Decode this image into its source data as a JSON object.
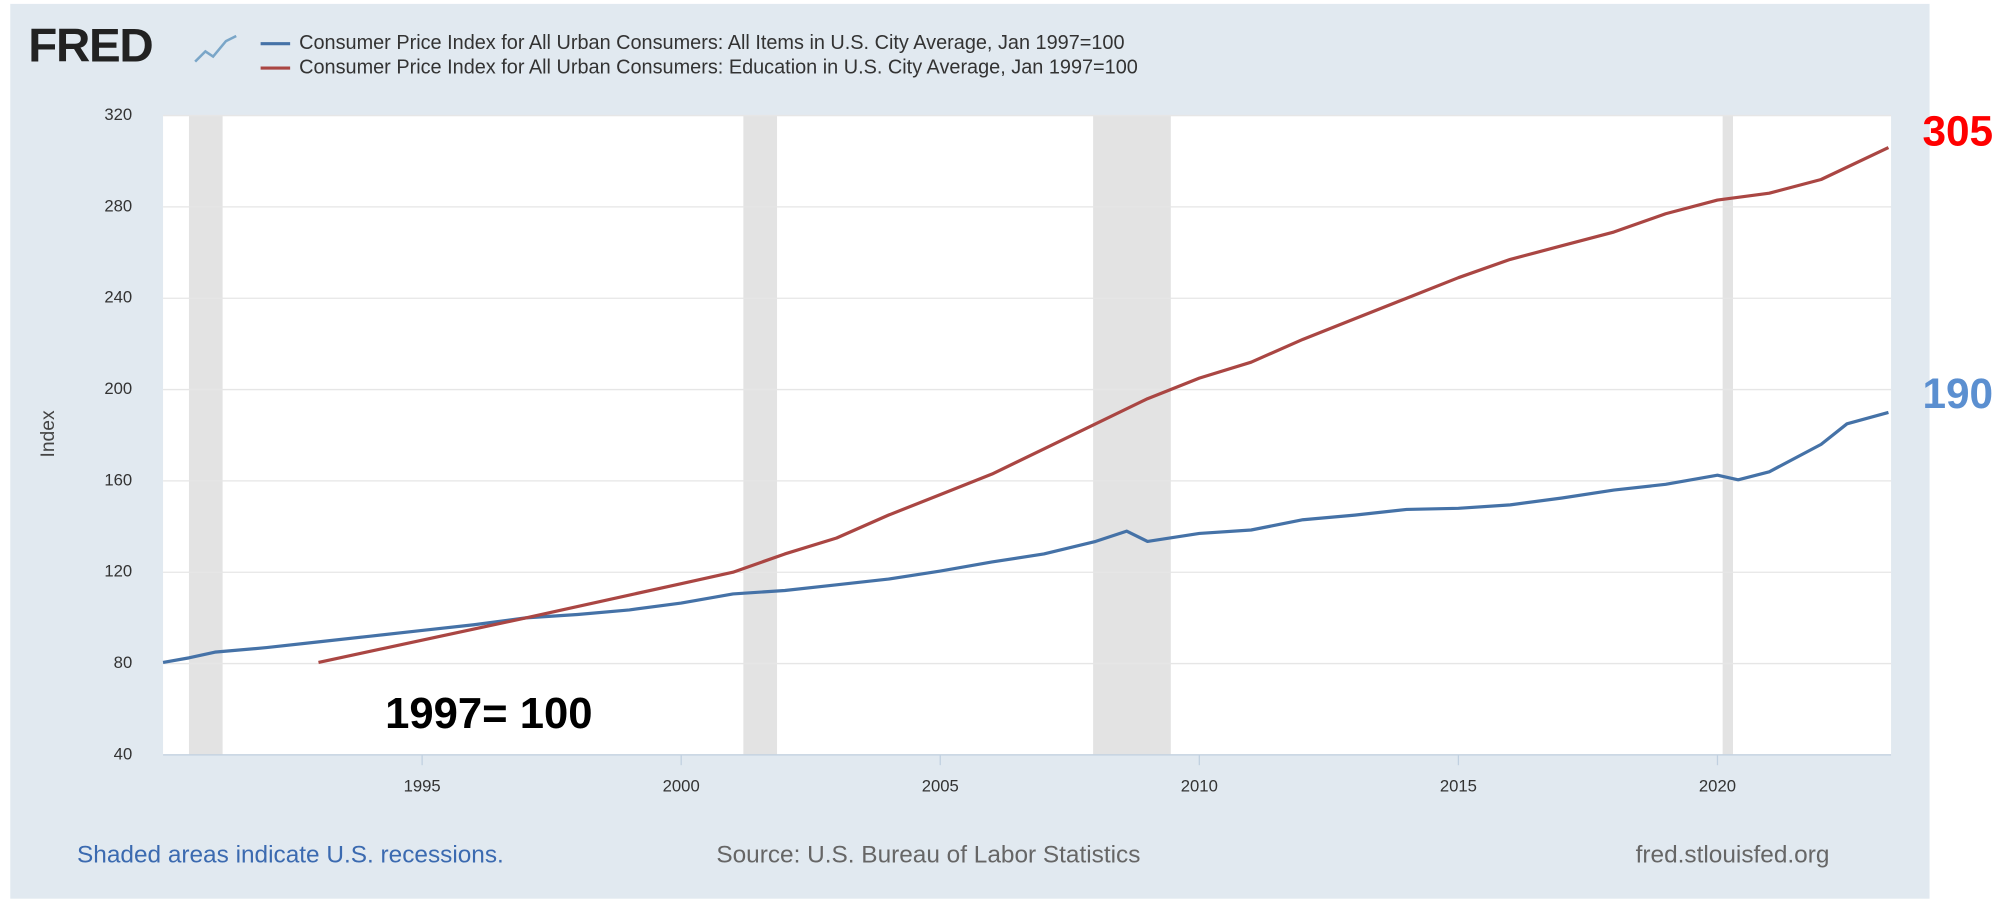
{
  "chart_data": {
    "type": "line",
    "logo": "FRED",
    "y_label": "Index",
    "annotation": "1997= 100",
    "xlim": [
      1990.0,
      2023.35
    ],
    "xticks": [
      1995,
      2000,
      2005,
      2010,
      2015,
      2020
    ],
    "ylim": [
      40,
      320
    ],
    "yticks": [
      40,
      80,
      120,
      160,
      200,
      240,
      280,
      320
    ],
    "grid": true,
    "recession_color": "#e3e3e3",
    "recessions": [
      [
        1990.5,
        1991.15
      ],
      [
        2001.2,
        2001.85
      ],
      [
        2007.95,
        2009.45
      ],
      [
        2020.1,
        2020.3
      ]
    ],
    "series": [
      {
        "name": "Consumer Price Index for All Urban Consumers: All Items in U.S. City Average, Jan 1997=100",
        "color": "#4572a7",
        "end_color": "#5b8fd0",
        "end_value": 190,
        "x": [
          1990.0,
          1990.5,
          1991.0,
          1992.0,
          1993.0,
          1994.0,
          1995.0,
          1996.0,
          1997.0,
          1998.0,
          1999.0,
          2000.0,
          2001.0,
          2002.0,
          2003.0,
          2004.0,
          2005.0,
          2006.0,
          2007.0,
          2008.0,
          2008.6,
          2009.0,
          2010.0,
          2011.0,
          2012.0,
          2013.0,
          2014.0,
          2015.0,
          2016.0,
          2017.0,
          2018.0,
          2019.0,
          2020.0,
          2020.4,
          2021.0,
          2022.0,
          2022.5,
          2023.3
        ],
        "values": [
          80.5,
          82.5,
          85,
          87,
          89.5,
          92,
          94.5,
          97,
          100,
          101.5,
          103.5,
          106.5,
          110.5,
          112,
          114.5,
          117,
          120.5,
          124.5,
          128,
          133.5,
          138,
          133.5,
          137,
          138.5,
          143,
          145,
          147.5,
          148,
          149.5,
          152.5,
          156,
          158.5,
          162.5,
          160.5,
          164,
          176,
          185,
          190
        ]
      },
      {
        "name": "Consumer Price Index for All Urban Consumers: Education in U.S. City Average, Jan 1997=100",
        "color": "#aa4643",
        "end_color": "#ff0000",
        "end_value": 305,
        "x": [
          1993.0,
          1997.0,
          2000.0,
          2001.0,
          2002.0,
          2003.0,
          2004.0,
          2005.0,
          2006.0,
          2007.0,
          2008.0,
          2009.0,
          2010.0,
          2011.0,
          2012.0,
          2013.0,
          2014.0,
          2015.0,
          2016.0,
          2017.0,
          2018.0,
          2019.0,
          2020.0,
          2021.0,
          2022.0,
          2023.3
        ],
        "values": [
          80.5,
          100,
          115,
          120,
          128,
          135,
          145,
          154,
          163,
          174,
          185,
          196,
          205,
          212,
          222,
          231,
          240,
          249,
          257,
          263,
          269,
          277,
          283,
          286,
          292,
          306
        ]
      }
    ],
    "footer": {
      "note": "Shaded areas indicate U.S. recessions.",
      "source": "Source: U.S. Bureau of Labor Statistics",
      "site": "fred.stlouisfed.org"
    }
  }
}
